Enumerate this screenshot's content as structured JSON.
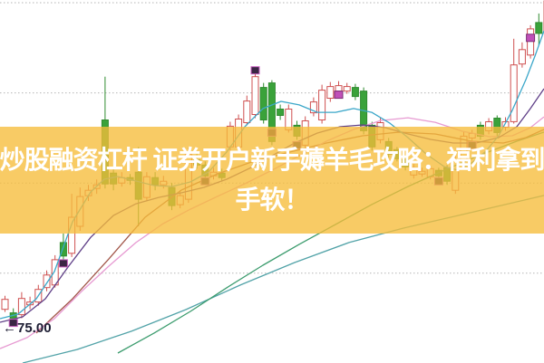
{
  "banner": {
    "line1": "炒股融资杠杆 证券开户新手薅羊毛攻略：福利拿到",
    "line2": "手软！",
    "background_color": "#F6BD3A",
    "text_color": "#FFFFFF"
  },
  "price_label": {
    "arrow": "←",
    "value": "75.00"
  },
  "chart_data": {
    "type": "candlestick",
    "title": "",
    "legend": [],
    "price_axis": {
      "min_price": 75.02,
      "max_price": 95.15,
      "gridline_prices": [
        95,
        90,
        85,
        80
      ],
      "grid_style": "dotted"
    },
    "colors": {
      "up": "#CF5050",
      "up_fill": "#FFFFFF",
      "down": "#2F8B2F",
      "down_fill": "#3AA23A",
      "grid": "#B5B5B5",
      "marker_dark_fill": "#3A2644",
      "marker_dark_stroke": "#C95FC0",
      "marker_bright_fill": "#C050B8",
      "marker_bright_stroke": "#7A2E74"
    },
    "candles": [
      [
        78.0,
        78.75,
        77.85,
        78.55
      ],
      [
        77.8,
        78.05,
        77.2,
        77.5
      ],
      [
        77.7,
        78.95,
        77.5,
        78.6
      ],
      [
        78.25,
        78.7,
        78.0,
        78.4
      ],
      [
        78.4,
        79.35,
        78.2,
        79.1
      ],
      [
        79.2,
        80.15,
        79.0,
        79.9
      ],
      [
        79.35,
        81.0,
        79.2,
        80.75
      ],
      [
        81.7,
        82.2,
        80.4,
        80.95
      ],
      [
        81.1,
        84.4,
        80.9,
        83.1
      ],
      [
        82.6,
        84.75,
        82.35,
        84.25
      ],
      [
        84.3,
        84.9,
        84.0,
        84.6
      ],
      [
        84.7,
        85.2,
        84.4,
        84.9
      ],
      [
        88.5,
        90.9,
        84.7,
        84.95
      ],
      [
        85.55,
        85.8,
        84.6,
        84.95
      ],
      [
        85.0,
        85.6,
        84.8,
        85.3
      ],
      [
        85.3,
        85.5,
        84.9,
        85.15
      ],
      [
        85.6,
        87.0,
        82.6,
        84.1
      ],
      [
        84.2,
        85.6,
        84.0,
        85.35
      ],
      [
        85.3,
        85.6,
        84.6,
        84.9
      ],
      [
        84.9,
        85.4,
        84.7,
        85.1
      ],
      [
        84.75,
        85.0,
        83.5,
        83.75
      ],
      [
        83.8,
        84.6,
        83.6,
        84.3
      ],
      [
        84.1,
        86.95,
        83.9,
        86.6
      ],
      [
        86.3,
        86.7,
        85.8,
        86.0
      ],
      [
        86.0,
        86.2,
        85.2,
        85.4
      ],
      [
        85.4,
        85.85,
        85.2,
        85.6
      ],
      [
        85.55,
        85.8,
        85.1,
        85.3
      ],
      [
        87.0,
        88.4,
        85.9,
        88.15
      ],
      [
        87.0,
        88.8,
        86.8,
        88.55
      ],
      [
        88.35,
        89.85,
        88.2,
        89.55
      ],
      [
        88.8,
        91.15,
        88.6,
        90.9
      ],
      [
        90.3,
        90.55,
        88.3,
        88.5
      ],
      [
        90.55,
        90.7,
        87.1,
        87.3
      ],
      [
        89.1,
        89.35,
        88.5,
        88.75
      ],
      [
        87.95,
        89.35,
        87.8,
        89.1
      ],
      [
        88.2,
        88.45,
        87.4,
        87.6
      ],
      [
        87.1,
        88.7,
        86.9,
        88.45
      ],
      [
        88.9,
        89.75,
        88.7,
        89.5
      ],
      [
        88.5,
        90.45,
        88.3,
        90.15
      ],
      [
        89.7,
        90.6,
        89.5,
        90.35
      ],
      [
        90.1,
        90.65,
        89.9,
        90.4
      ],
      [
        90.1,
        90.55,
        89.95,
        90.35
      ],
      [
        90.3,
        90.5,
        89.6,
        89.8
      ],
      [
        90.1,
        90.3,
        87.7,
        87.9
      ],
      [
        88.2,
        88.4,
        86.8,
        87.0
      ],
      [
        87.4,
        88.6,
        87.2,
        88.35
      ],
      [
        87.3,
        87.5,
        86.4,
        86.6
      ],
      [
        86.85,
        87.0,
        86.2,
        86.35
      ],
      [
        86.3,
        86.5,
        85.7,
        85.9
      ],
      [
        85.45,
        86.05,
        85.25,
        85.85
      ],
      [
        85.5,
        85.85,
        85.35,
        85.65
      ],
      [
        85.35,
        85.95,
        85.2,
        85.8
      ],
      [
        85.7,
        85.85,
        85.2,
        85.4
      ],
      [
        85.85,
        86.0,
        84.9,
        85.1
      ],
      [
        84.6,
        86.5,
        84.4,
        86.3
      ],
      [
        86.3,
        87.85,
        86.15,
        87.6
      ],
      [
        87.5,
        87.95,
        87.3,
        87.75
      ],
      [
        88.2,
        88.4,
        87.4,
        87.6
      ],
      [
        87.9,
        88.6,
        87.7,
        88.4
      ],
      [
        88.6,
        88.75,
        87.6,
        87.8
      ],
      [
        88.1,
        88.65,
        87.9,
        88.4
      ],
      [
        88.4,
        93.0,
        88.3,
        91.55
      ],
      [
        91.6,
        92.8,
        91.4,
        92.4
      ],
      [
        92.1,
        93.75,
        91.9,
        93.55
      ],
      [
        93.9,
        94.4,
        92.65,
        93.3
      ],
      [
        93.4,
        95.7,
        93.3,
        95.1
      ]
    ],
    "markers": [
      {
        "index": 1,
        "price": 77.45,
        "style": "dark"
      },
      {
        "index": 7,
        "price": 80.75,
        "style": "dark"
      },
      {
        "index": 24,
        "price": 85.3,
        "style": "dark"
      },
      {
        "index": 30,
        "price": 91.45,
        "style": "dark"
      },
      {
        "index": 32,
        "price": 88.0,
        "style": "dark"
      },
      {
        "index": 35,
        "price": 87.3,
        "style": "dark"
      },
      {
        "index": 40,
        "price": 90.1,
        "style": "bright"
      },
      {
        "index": 52,
        "price": 85.3,
        "style": "dark"
      },
      {
        "index": 56,
        "price": 87.3,
        "style": "dark"
      },
      {
        "index": 63,
        "price": 93.25,
        "style": "bright"
      }
    ],
    "ma_lines": [
      {
        "name": "ma-teal",
        "color": "#52A3A8",
        "points": [
          [
            25,
            75.02
          ],
          [
            85,
            75.77
          ],
          [
            145,
            76.78
          ],
          [
            205,
            77.98
          ],
          [
            265,
            79.34
          ],
          [
            325,
            80.59
          ],
          [
            385,
            81.7
          ],
          [
            445,
            82.5
          ],
          [
            505,
            83.2
          ],
          [
            565,
            83.9
          ],
          [
            600,
            84.31
          ]
        ]
      },
      {
        "name": "ma-green",
        "color": "#3C9C6E",
        "points": [
          [
            130,
            75.57
          ],
          [
            170,
            76.68
          ],
          [
            210,
            77.88
          ],
          [
            250,
            79.19
          ],
          [
            290,
            80.44
          ],
          [
            330,
            81.6
          ],
          [
            370,
            82.7
          ],
          [
            410,
            83.81
          ],
          [
            450,
            84.81
          ],
          [
            490,
            85.71
          ],
          [
            530,
            86.56
          ],
          [
            570,
            87.32
          ],
          [
            600,
            87.82
          ]
        ]
      },
      {
        "name": "ma-maroon",
        "color": "#A2574A",
        "points": [
          [
            40,
            76.68
          ],
          [
            80,
            78.58
          ],
          [
            120,
            80.79
          ],
          [
            160,
            83.1
          ],
          [
            200,
            84.61
          ],
          [
            240,
            85.51
          ],
          [
            280,
            86.21
          ],
          [
            320,
            86.72
          ],
          [
            360,
            87.22
          ],
          [
            400,
            87.62
          ],
          [
            440,
            87.82
          ],
          [
            480,
            87.72
          ],
          [
            520,
            87.32
          ],
          [
            555,
            87.22
          ],
          [
            580,
            87.52
          ],
          [
            600,
            87.97
          ]
        ]
      },
      {
        "name": "ma-pink",
        "color": "#E79AD2",
        "points": [
          [
            0,
            75.82
          ],
          [
            30,
            76.43
          ],
          [
            60,
            77.48
          ],
          [
            90,
            78.99
          ],
          [
            120,
            80.39
          ],
          [
            150,
            81.7
          ],
          [
            180,
            82.75
          ],
          [
            210,
            83.55
          ],
          [
            240,
            84.26
          ],
          [
            270,
            84.96
          ],
          [
            300,
            85.71
          ],
          [
            330,
            86.51
          ],
          [
            360,
            87.32
          ],
          [
            390,
            87.97
          ],
          [
            420,
            88.47
          ],
          [
            450,
            88.62
          ],
          [
            480,
            88.37
          ],
          [
            510,
            87.87
          ],
          [
            540,
            87.57
          ],
          [
            565,
            87.62
          ],
          [
            585,
            88.07
          ],
          [
            600,
            88.67
          ]
        ]
      },
      {
        "name": "ma-violet",
        "color": "#5F3F87",
        "points": [
          [
            0,
            77.28
          ],
          [
            25,
            77.58
          ],
          [
            50,
            78.58
          ],
          [
            75,
            80.34
          ],
          [
            100,
            81.99
          ],
          [
            125,
            83.2
          ],
          [
            150,
            83.85
          ],
          [
            175,
            84.2
          ],
          [
            200,
            84.46
          ],
          [
            225,
            84.76
          ],
          [
            250,
            85.21
          ],
          [
            275,
            85.81
          ],
          [
            300,
            86.51
          ],
          [
            325,
            87.22
          ],
          [
            350,
            87.77
          ],
          [
            375,
            88.12
          ],
          [
            400,
            88.22
          ],
          [
            425,
            88.07
          ],
          [
            450,
            87.72
          ],
          [
            475,
            87.42
          ],
          [
            500,
            87.22
          ],
          [
            525,
            87.22
          ],
          [
            550,
            87.52
          ],
          [
            570,
            88.12
          ],
          [
            585,
            89.13
          ],
          [
            600,
            90.23
          ]
        ]
      },
      {
        "name": "ma-cyan",
        "color": "#3BA7C9",
        "points": [
          [
            0,
            77.48
          ],
          [
            20,
            77.73
          ],
          [
            40,
            78.58
          ],
          [
            60,
            80.09
          ],
          [
            80,
            82.85
          ],
          [
            100,
            84.51
          ],
          [
            115,
            85.21
          ],
          [
            130,
            85.36
          ],
          [
            150,
            85.11
          ],
          [
            170,
            84.86
          ],
          [
            190,
            84.81
          ],
          [
            210,
            85.06
          ],
          [
            230,
            85.61
          ],
          [
            250,
            86.72
          ],
          [
            270,
            88.12
          ],
          [
            290,
            89.13
          ],
          [
            310,
            89.53
          ],
          [
            330,
            89.33
          ],
          [
            350,
            88.92
          ],
          [
            370,
            88.92
          ],
          [
            390,
            89.13
          ],
          [
            410,
            88.92
          ],
          [
            430,
            88.32
          ],
          [
            450,
            87.52
          ],
          [
            470,
            86.61
          ],
          [
            490,
            85.91
          ],
          [
            505,
            85.71
          ],
          [
            520,
            86.11
          ],
          [
            535,
            86.72
          ],
          [
            550,
            87.62
          ],
          [
            565,
            89.03
          ],
          [
            580,
            90.73
          ],
          [
            590,
            92.04
          ],
          [
            600,
            93.44
          ]
        ]
      }
    ]
  }
}
